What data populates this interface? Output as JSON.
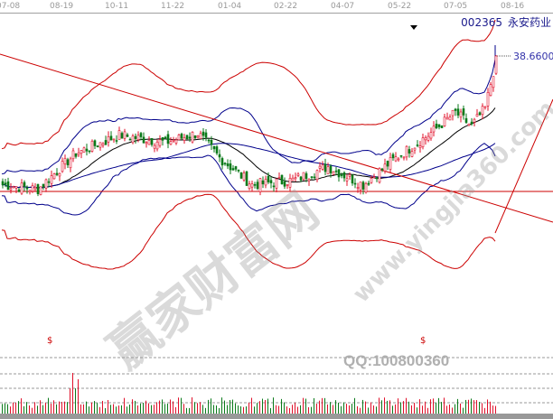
{
  "chart_data": {
    "type": "candlestick",
    "title": "",
    "stock": {
      "code": "002365",
      "name": "永安药业"
    },
    "x_tick_labels": [
      "07-08",
      "08-19",
      "10-11",
      "11-22",
      "01-04",
      "02-22",
      "04-07",
      "05-22",
      "07-05",
      "08-16"
    ],
    "price_annotation": "38.6600",
    "price_keypoints": [
      {
        "i": 0,
        "p": 24.4
      },
      {
        "i": 13,
        "p": 23.9
      },
      {
        "i": 27,
        "p": 27.9
      },
      {
        "i": 43,
        "p": 29.9
      },
      {
        "i": 60,
        "p": 29.1
      },
      {
        "i": 72,
        "p": 30.1
      },
      {
        "i": 80,
        "p": 27.4
      },
      {
        "i": 92,
        "p": 24.4
      },
      {
        "i": 107,
        "p": 24.9
      },
      {
        "i": 120,
        "p": 26.4
      },
      {
        "i": 133,
        "p": 24.4
      },
      {
        "i": 143,
        "p": 26.9
      },
      {
        "i": 157,
        "p": 29.9
      },
      {
        "i": 167,
        "p": 32.4
      },
      {
        "i": 173,
        "p": 30.9
      },
      {
        "i": 178,
        "p": 32.9
      },
      {
        "i": 181,
        "p": 36.9
      },
      {
        "i": 182,
        "p": 38.66
      }
    ],
    "horizontal_line_price": 23.66,
    "indicators": [
      "MA20",
      "MA60",
      "Bollinger inner",
      "Bollinger outer"
    ],
    "volume_markers": [
      "$",
      "$"
    ],
    "colors": {
      "up": "#e0102a",
      "down": "#0a7a1a",
      "ma_short": "#000000",
      "ma_long": "#00008b",
      "band": "#cc0000",
      "trendline": "#cc0000"
    }
  },
  "watermark": {
    "site_cn": "赢家财富网",
    "site_url": "www.yingjia360.com",
    "qq": "QQ:100800360"
  }
}
